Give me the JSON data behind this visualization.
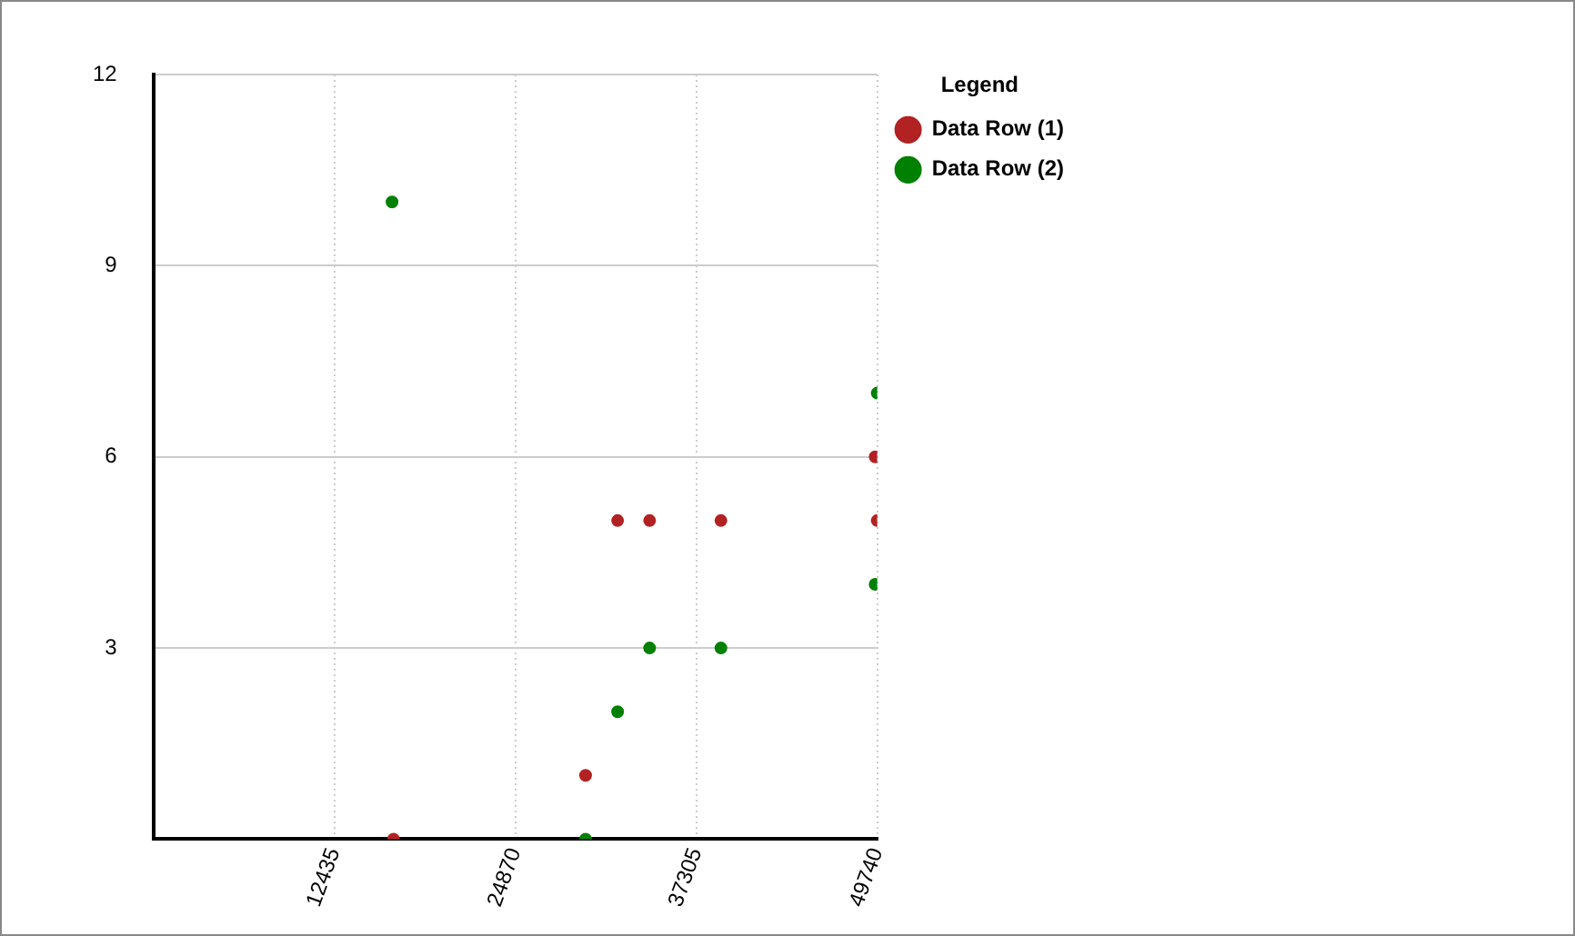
{
  "chart_data": {
    "type": "scatter",
    "legend_title": "Legend",
    "legend": "top right",
    "grid": true,
    "marker": "circle",
    "xlim": [
      0,
      49740
    ],
    "xticks": [
      12435,
      24870,
      37305,
      49740
    ],
    "ylim": [
      0,
      12
    ],
    "yticks": [
      3,
      6,
      9,
      12
    ],
    "series": [
      {
        "name": "Data Row (1)",
        "color": "#b22222",
        "x": [
          16500,
          29700,
          31900,
          34100,
          39000,
          49600,
          49740
        ],
        "values": [
          0,
          1,
          5,
          5,
          5,
          6,
          5
        ]
      },
      {
        "name": "Data Row (2)",
        "color": "#008000",
        "x": [
          16400,
          29700,
          31900,
          34100,
          39000,
          49740,
          49600
        ],
        "values": [
          10,
          0,
          2,
          3,
          3,
          7,
          4
        ]
      }
    ]
  }
}
